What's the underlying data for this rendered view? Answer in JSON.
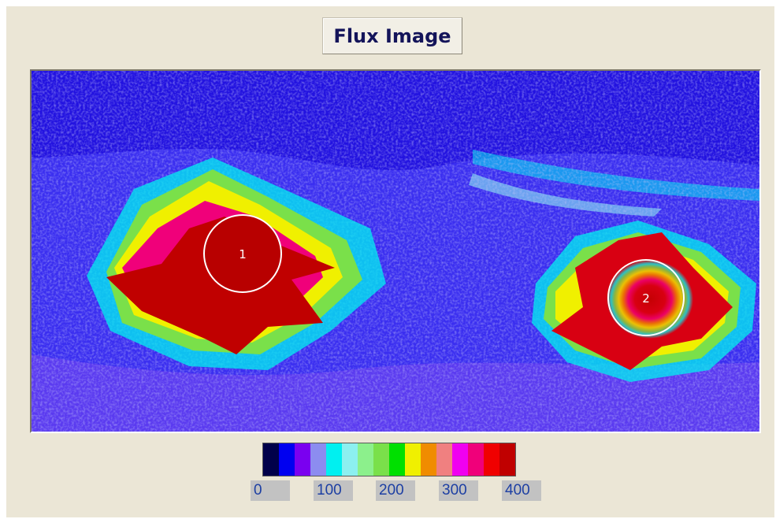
{
  "title": "Flux Image",
  "regions": [
    {
      "label": "1"
    },
    {
      "label": "2"
    }
  ],
  "colorbar": {
    "colors": [
      "#00004a",
      "#0000f0",
      "#7a00f0",
      "#8c8cf0",
      "#00f0f0",
      "#8cf0f0",
      "#8cf08c",
      "#7ae04a",
      "#00e000",
      "#f0f000",
      "#f08c00",
      "#f08080",
      "#f000f0",
      "#f0007a",
      "#f00000",
      "#c00000"
    ],
    "tick_labels": [
      "0",
      "100",
      "200",
      "300",
      "400"
    ]
  }
}
